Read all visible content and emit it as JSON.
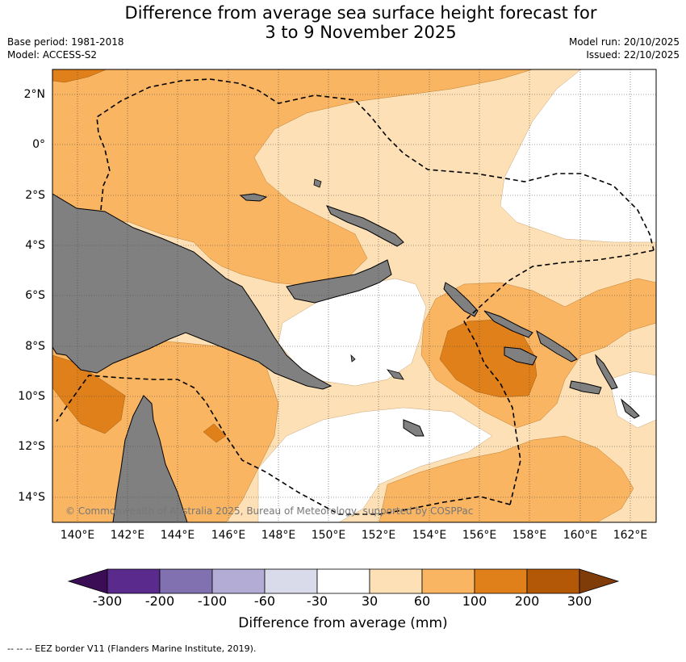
{
  "title": {
    "line1": "Difference from average sea surface height forecast for",
    "line2": "3 to 9 November 2025"
  },
  "meta": {
    "base_period": "Base period: 1981-2018",
    "model": "Model: ACCESS-S2",
    "model_run": "Model run: 20/10/2025",
    "issued": "Issued: 22/10/2025"
  },
  "map": {
    "lat_labels": [
      "2°N",
      "0°",
      "2°S",
      "4°S",
      "6°S",
      "8°S",
      "10°S",
      "12°S",
      "14°S"
    ],
    "lon_labels": [
      "140°E",
      "142°E",
      "144°E",
      "146°E",
      "148°E",
      "150°E",
      "152°E",
      "154°E",
      "156°E",
      "158°E",
      "160°E",
      "162°E"
    ],
    "lat_range": [
      -15,
      3
    ],
    "lon_range": [
      139,
      163
    ],
    "copyright": "© Commonwealth of Australia 2025, Bureau of Meteorology, supported by COSPPac",
    "colors": {
      "land": "#808080",
      "c30_60": "#fde0b6",
      "c60_100": "#f9b562",
      "c100_200": "#e0801a"
    }
  },
  "colorbar": {
    "ticks": [
      "-300",
      "-200",
      "-100",
      "-60",
      "-30",
      "30",
      "60",
      "100",
      "200",
      "300"
    ],
    "colors": [
      "#3b0d54",
      "#5a2a8c",
      "#8171b1",
      "#b3acd4",
      "#d9daea",
      "#ffffff",
      "#fde0b6",
      "#f9b562",
      "#e0801a",
      "#b35806",
      "#7f3b08"
    ],
    "label": "Difference from average (mm)"
  },
  "footnote": "--  --  -- EEZ border V11 (Flanders Marine Institute, 2019)."
}
